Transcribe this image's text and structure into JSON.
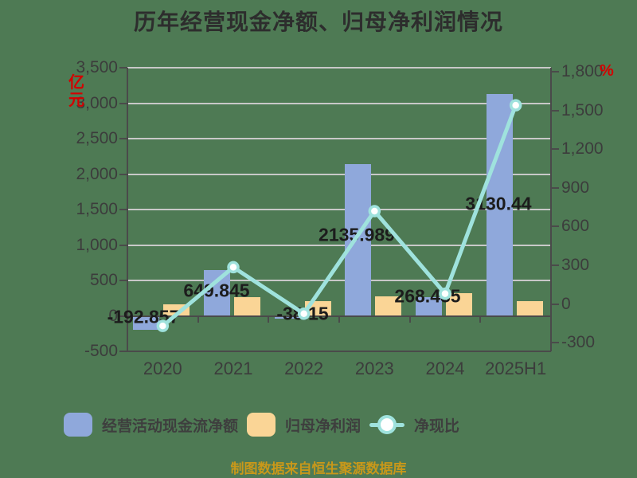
{
  "title": "历年经营现金净额、归母净利润情况",
  "source_note": "制图数据来自恒生聚源数据库",
  "colors": {
    "background": "#4E7A54",
    "bar_blue": "#8FA8DB",
    "bar_yellow": "#FAD596",
    "line_teal": "#9FE2DD",
    "marker_fill": "#FFFFFF",
    "axis_dark": "#4A4A4A",
    "grid_gray": "#C8C8C8",
    "tick_text": "#3C3C3C",
    "value_label_text": "#1C1C1C",
    "title_text": "#2D2D2D",
    "unit_red": "#D40000",
    "footer_gold": "#C8981A"
  },
  "chart_data": {
    "type": "combo-bar-line",
    "title": "历年经营现金净额、归母净利润情况",
    "categories": [
      "2020",
      "2021",
      "2022",
      "2023",
      "2024",
      "2025H1"
    ],
    "series": [
      {
        "name": "经营活动现金流净额",
        "type": "bar",
        "axis": "left",
        "color": "#8FA8DB",
        "values": [
          -192.857,
          649.845,
          -38.15,
          2135.989,
          268.435,
          3130.44
        ],
        "data_labels": [
          "-192.857",
          "649.845",
          "-38.15",
          "2135.989",
          "268.435",
          "3130.44"
        ]
      },
      {
        "name": "归母净利润",
        "type": "bar",
        "axis": "left",
        "color": "#FAD596",
        "values": [
          163,
          264,
          208,
          275,
          324,
          211
        ]
      },
      {
        "name": "净现比",
        "type": "line",
        "axis": "right",
        "color": "#9FE2DD",
        "marker": "circle-white",
        "values": [
          -170,
          285,
          -75,
          720,
          80,
          1540
        ]
      }
    ],
    "left_axis": {
      "unit": "亿元",
      "min": -500,
      "max": 3500,
      "step": 500,
      "tick_labels": [
        "3,500",
        "3,000",
        "2,500",
        "2,000",
        "1,500",
        "1,000",
        "500",
        "0",
        "-500"
      ]
    },
    "right_axis": {
      "unit": "%",
      "min": -300,
      "max": 1800,
      "step": 300,
      "tick_labels": [
        "1,800",
        "1,500",
        "1,200",
        "900",
        "600",
        "300",
        "0",
        "-300"
      ]
    },
    "grid": true,
    "legend_position": "bottom"
  }
}
